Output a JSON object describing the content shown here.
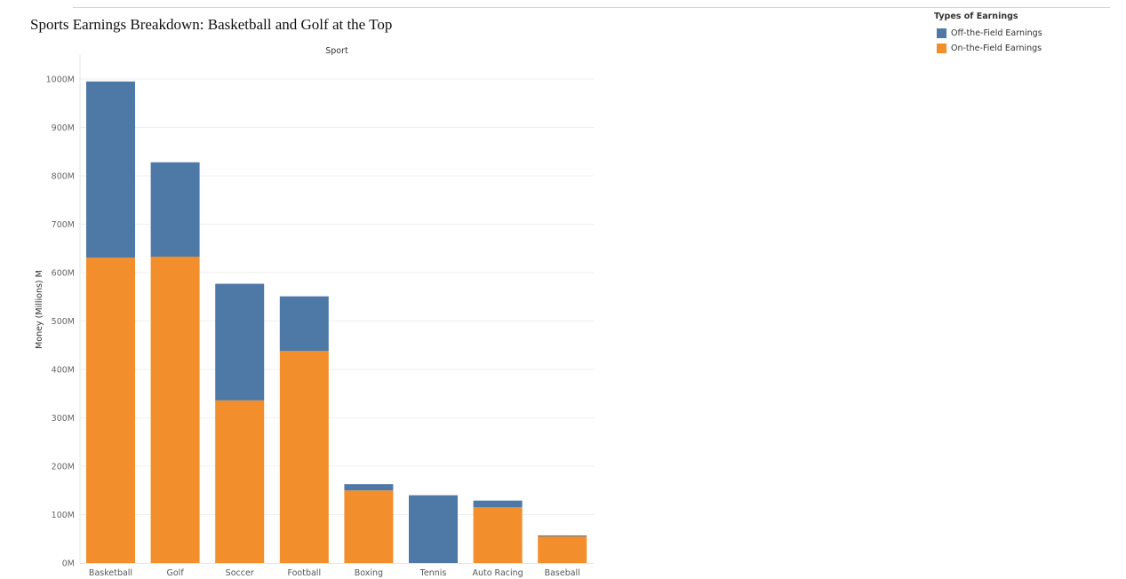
{
  "title": "Sports Earnings Breakdown: Basketball and Golf at the Top",
  "legend": {
    "title": "Types of Earnings",
    "items": [
      {
        "label": "Off-the-Field Earnings",
        "color": "#4e79a7"
      },
      {
        "label": "On-the-Field Earnings",
        "color": "#f28e2b"
      }
    ]
  },
  "chart_data": {
    "type": "bar",
    "stacked": true,
    "title": "Sports Earnings Breakdown: Basketball and Golf at the Top",
    "column_header": "Sport",
    "xlabel": "",
    "ylabel": "Money (Millions) M",
    "ylim": [
      0,
      1000
    ],
    "y_tick_labels": [
      "0M",
      "100M",
      "200M",
      "300M",
      "400M",
      "500M",
      "600M",
      "700M",
      "800M",
      "900M",
      "1000M"
    ],
    "grid": true,
    "legend_position": "top-right",
    "categories": [
      "Basketball",
      "Golf",
      "Soccer",
      "Football",
      "Boxing",
      "Tennis",
      "Auto Racing",
      "Baseball"
    ],
    "series": [
      {
        "name": "On-the-Field Earnings",
        "color": "#f28e2b",
        "values": [
          631,
          633,
          336,
          438,
          150,
          0,
          115,
          55
        ]
      },
      {
        "name": "Off-the-Field Earnings",
        "color": "#4e79a7",
        "values": [
          364,
          195,
          241,
          113,
          13,
          140,
          14,
          2
        ]
      }
    ]
  }
}
